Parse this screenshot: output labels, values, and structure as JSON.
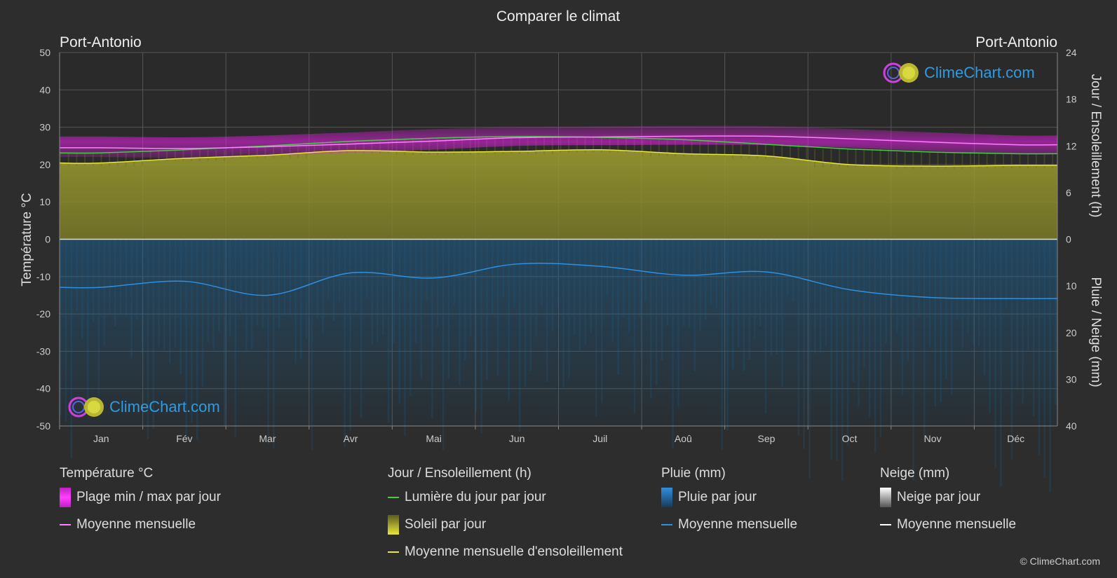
{
  "title": "Comparer le climat",
  "location_left": "Port-Antonio",
  "location_right": "Port-Antonio",
  "logo_text": "ClimeChart.com",
  "copyright": "© ClimeChart.com",
  "colors": {
    "background": "#2d2d2d",
    "temp_range": "#e020e0",
    "temp_mean": "#ff80ff",
    "daylight": "#40d040",
    "sunshine_fill": "#8c8c2a",
    "sunshine_mean": "#e8e83a",
    "rain_fill": "#1d5c8c",
    "rain_mean": "#2f8fe0",
    "snow_mean": "#ffffff"
  },
  "legend": {
    "temperature": {
      "title": "Température °C",
      "range_label": "Plage min / max par jour",
      "mean_label": "Moyenne mensuelle"
    },
    "sun": {
      "title": "Jour / Ensoleillement (h)",
      "daylight_label": "Lumière du jour par jour",
      "sunshine_label": "Soleil par jour",
      "sunshine_mean_label": "Moyenne mensuelle d'ensoleillement"
    },
    "rain": {
      "title": "Pluie (mm)",
      "rain_label": "Pluie par jour",
      "mean_label": "Moyenne mensuelle"
    },
    "snow": {
      "title": "Neige (mm)",
      "snow_label": "Neige par jour",
      "mean_label": "Moyenne mensuelle"
    }
  },
  "chart_data": {
    "type": "line",
    "categories": [
      "Jan",
      "Fév",
      "Mar",
      "Avr",
      "Mai",
      "Jun",
      "Juil",
      "Aoû",
      "Sep",
      "Oct",
      "Nov",
      "Déc"
    ],
    "y_left": {
      "label": "Température °C",
      "range": [
        -50,
        50
      ],
      "ticks": [
        50,
        40,
        30,
        20,
        10,
        0,
        -10,
        -20,
        -30,
        -40,
        -50
      ]
    },
    "y_right_top": {
      "label": "Jour / Ensoleillement (h)",
      "range": [
        0,
        24
      ],
      "ticks": [
        24,
        18,
        12,
        6,
        0
      ]
    },
    "y_right_bottom": {
      "label": "Pluie / Neige (mm)",
      "range": [
        0,
        40
      ],
      "ticks": [
        0,
        10,
        20,
        30,
        40
      ]
    },
    "grid": true,
    "series": [
      {
        "name": "Moyenne mensuelle",
        "group": "temperature",
        "axis": "left",
        "values": [
          24.5,
          24.3,
          24.8,
          25.5,
          26.3,
          27.2,
          27.4,
          27.6,
          27.6,
          26.9,
          26.0,
          25.3
        ]
      },
      {
        "name": "Plage min / max par jour",
        "group": "temperature",
        "axis": "left",
        "min": [
          22.0,
          21.8,
          22.3,
          23.2,
          24.0,
          25.0,
          25.2,
          25.3,
          25.2,
          24.5,
          23.6,
          22.8
        ],
        "max": [
          27.5,
          27.3,
          27.8,
          28.6,
          29.5,
          30.0,
          30.2,
          30.4,
          30.3,
          29.5,
          28.6,
          27.8
        ]
      },
      {
        "name": "Lumière du jour par jour",
        "group": "sun",
        "axis": "right_top",
        "values": [
          11.1,
          11.5,
          12.0,
          12.6,
          13.0,
          13.2,
          13.1,
          12.8,
          12.2,
          11.6,
          11.2,
          11.0
        ]
      },
      {
        "name": "Moyenne mensuelle d'ensoleillement",
        "group": "sun",
        "axis": "right_top",
        "values": [
          9.8,
          10.4,
          10.8,
          11.4,
          11.2,
          11.3,
          11.5,
          11.0,
          10.7,
          9.6,
          9.4,
          9.5
        ]
      },
      {
        "name": "Moyenne mensuelle",
        "group": "rain",
        "axis": "right_bottom",
        "values": [
          10.3,
          9.0,
          12.0,
          7.2,
          8.3,
          5.3,
          5.8,
          7.7,
          7.0,
          10.8,
          12.5,
          12.7
        ]
      },
      {
        "name": "Moyenne mensuelle",
        "group": "snow",
        "axis": "right_bottom",
        "values": [
          0,
          0,
          0,
          0,
          0,
          0,
          0,
          0,
          0,
          0,
          0,
          0
        ]
      }
    ]
  }
}
